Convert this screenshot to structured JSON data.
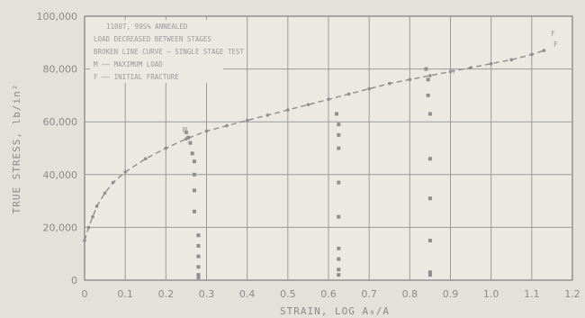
{
  "chart_data": {
    "type": "scatter",
    "xlabel": "STRAIN, LOG A₀/A",
    "ylabel": "TRUE STRESS, lb/in²",
    "xlim": [
      0,
      1.2
    ],
    "ylim": [
      0,
      100000
    ],
    "x_ticks": [
      "0",
      "0.1",
      "0.2",
      "0.3",
      "0.4",
      "0.5",
      "0.6",
      "0.7",
      "0.8",
      "0.9",
      "1.0",
      "1.1",
      "1.2"
    ],
    "y_ticks": [
      "0",
      "20,000",
      "40,000",
      "60,000",
      "80,000",
      "100,000"
    ],
    "grid": true,
    "annotations": [
      "1100T, 99S% ANNEALED",
      "LOAD DECREASED BETWEEN STAGES",
      "BROKEN LINE CURVE — SINGLE STAGE TEST",
      "M —— MAXIMUM LOAD",
      "F —— INITIAL FRACTURE"
    ],
    "markers": {
      "max_load": "M",
      "fracture": "F"
    },
    "series": [
      {
        "style": "single-stage-broken-line",
        "x": [
          0.0,
          0.01,
          0.02,
          0.03,
          0.05,
          0.07,
          0.1,
          0.15,
          0.2,
          0.25,
          0.3,
          0.35,
          0.4,
          0.45,
          0.5,
          0.55,
          0.6,
          0.65,
          0.7,
          0.75,
          0.8,
          0.85,
          0.9,
          0.95,
          1.0,
          1.05,
          1.1,
          1.13
        ],
        "y": [
          15000,
          20000,
          24000,
          28000,
          33000,
          37000,
          41000,
          46000,
          50000,
          53500,
          56500,
          58500,
          60500,
          62500,
          64500,
          66500,
          68500,
          70500,
          72500,
          74500,
          76000,
          77500,
          79000,
          80500,
          82000,
          83500,
          85500,
          87000
        ]
      },
      {
        "style": "stage-points",
        "x": [
          0.25,
          0.255,
          0.26,
          0.265,
          0.27,
          0.27,
          0.27,
          0.27,
          0.28,
          0.28,
          0.28,
          0.28,
          0.28,
          0.28
        ],
        "y": [
          56000,
          54000,
          52000,
          48000,
          45000,
          40000,
          34000,
          26000,
          17000,
          13000,
          9000,
          5000,
          2000,
          1000
        ]
      },
      {
        "style": "stage-points",
        "x": [
          0.62,
          0.625,
          0.625,
          0.625,
          0.625,
          0.625,
          0.625,
          0.625,
          0.625,
          0.625
        ],
        "y": [
          63000,
          59000,
          55000,
          50000,
          37000,
          24000,
          12000,
          8000,
          4000,
          2000
        ]
      },
      {
        "style": "stage-points",
        "x": [
          0.84,
          0.845,
          0.845,
          0.85,
          0.85,
          0.85,
          0.85,
          0.85,
          0.85
        ],
        "y": [
          80000,
          76000,
          70000,
          63000,
          46000,
          31000,
          15000,
          3000,
          2000
        ]
      }
    ]
  }
}
